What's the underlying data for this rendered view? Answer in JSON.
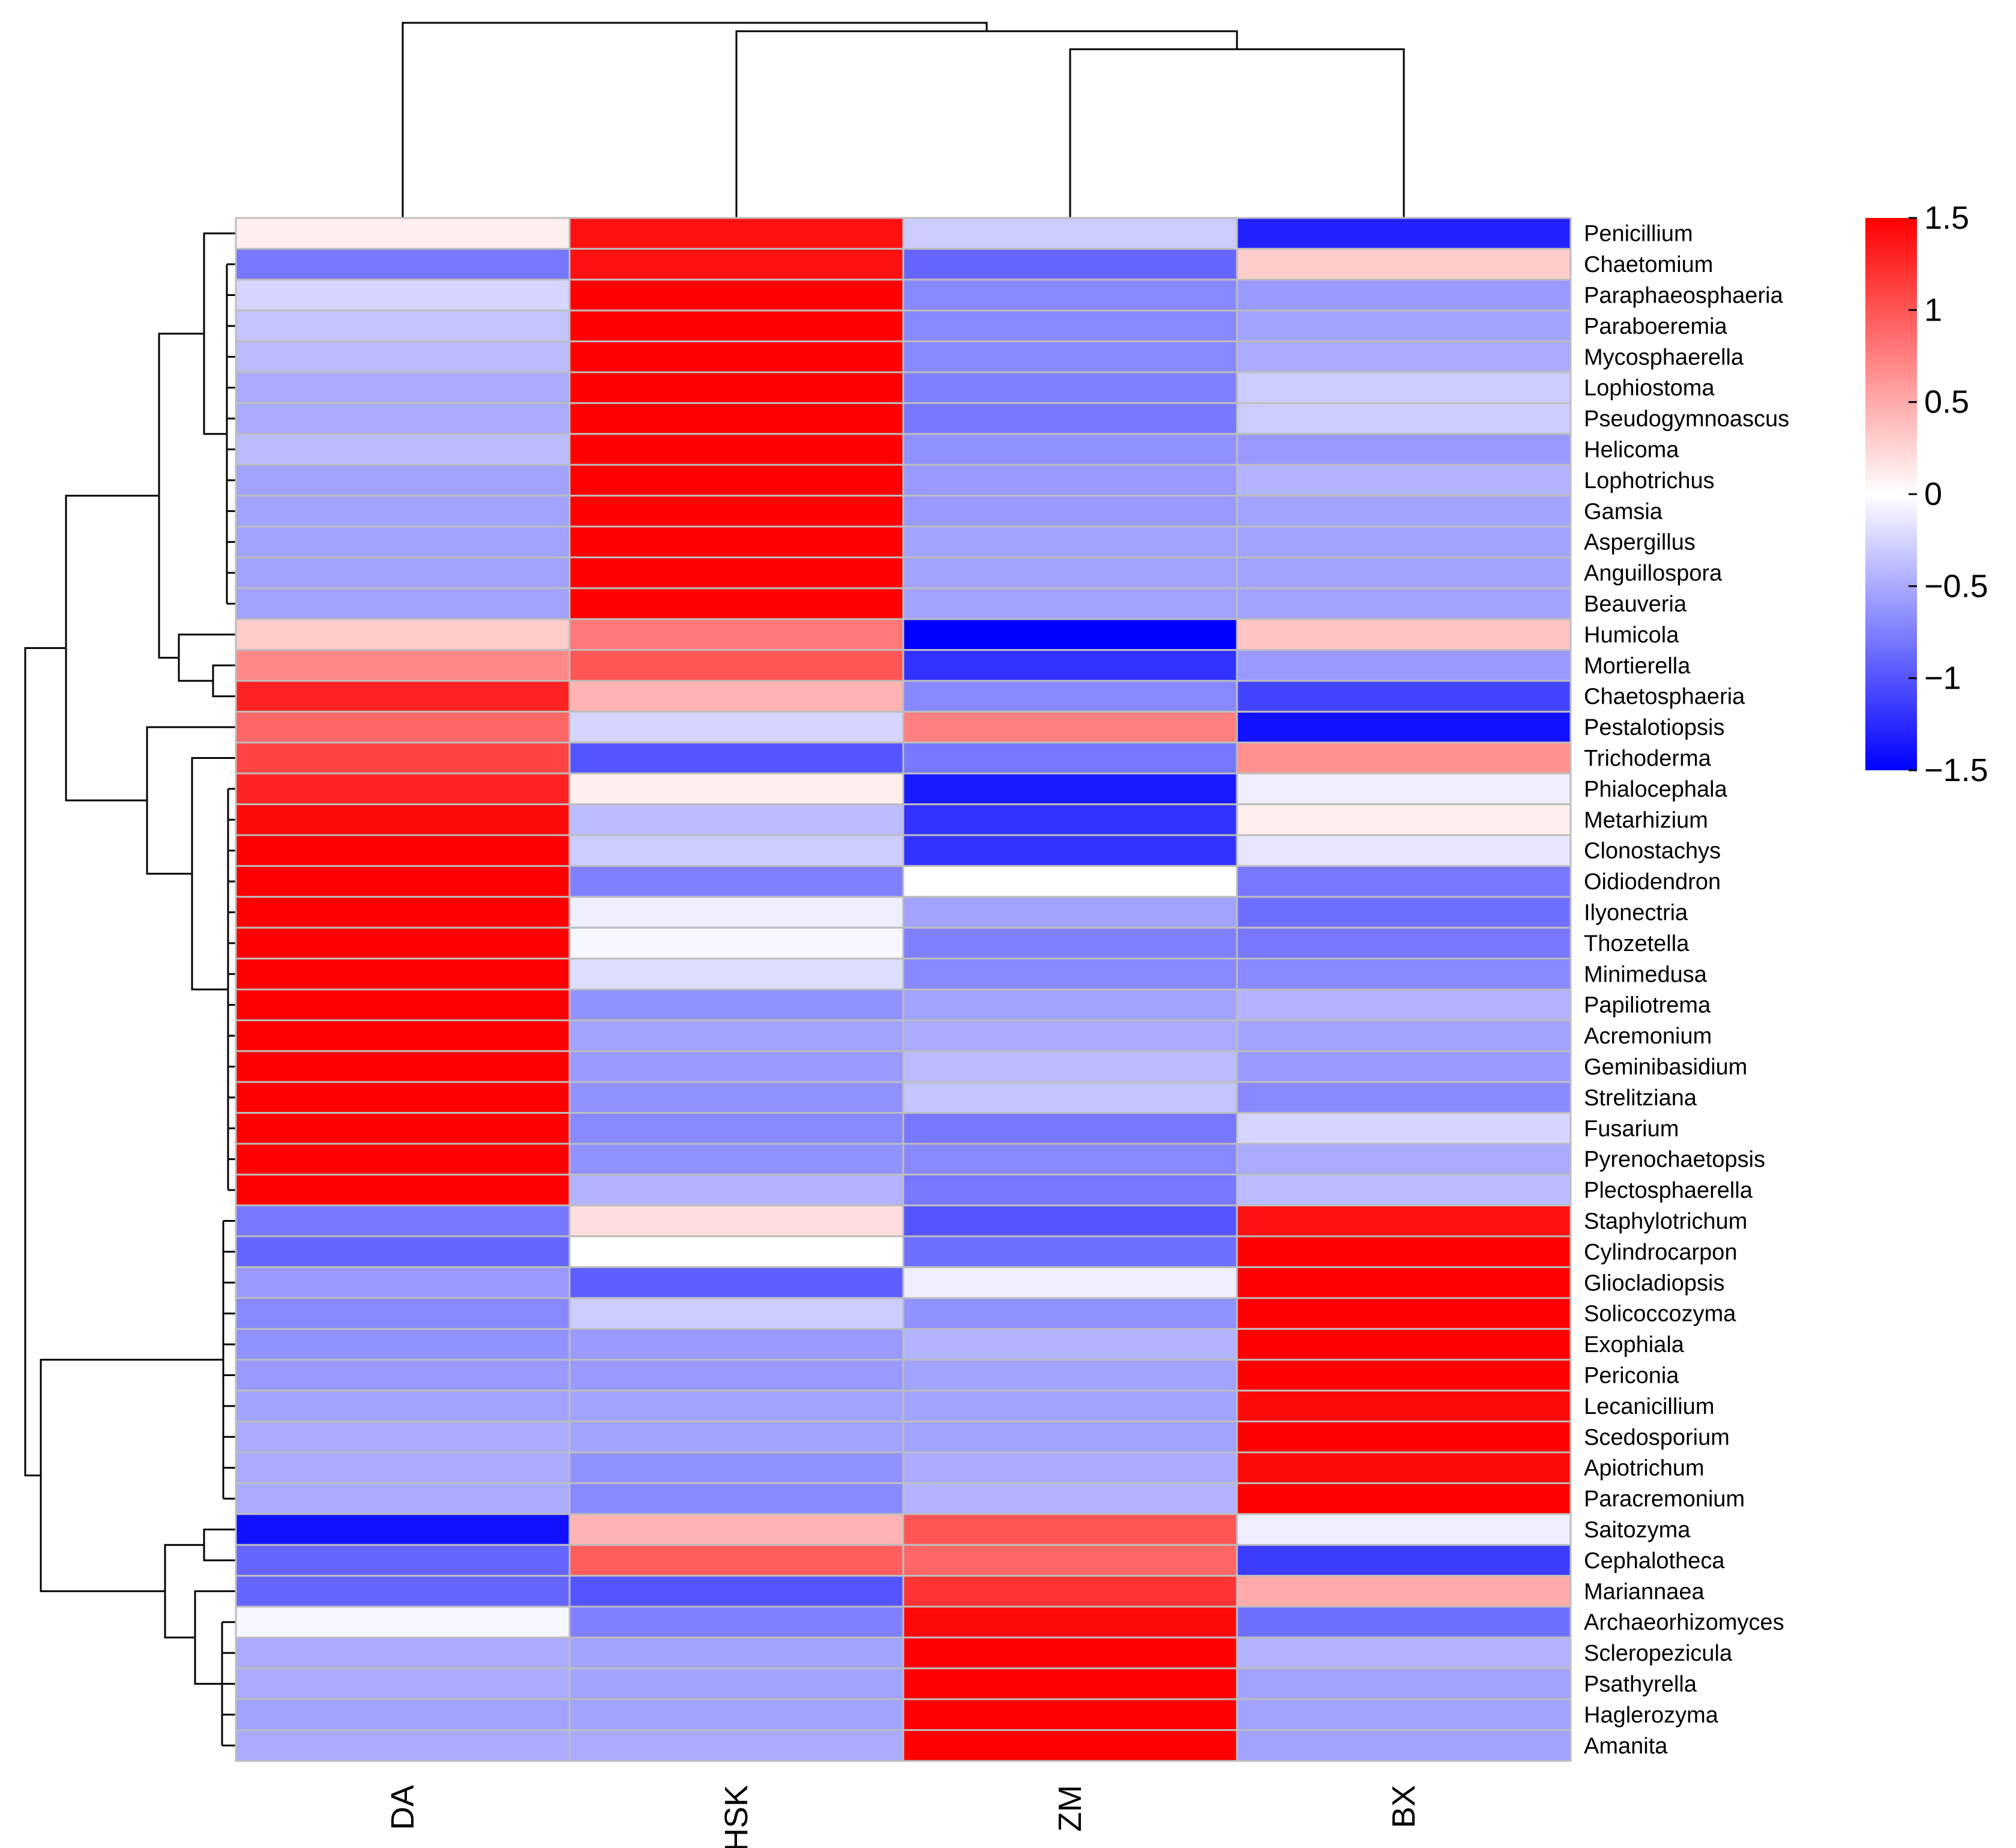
{
  "chart_data": {
    "type": "heatmap",
    "columns": [
      "DA",
      "HSK",
      "ZM",
      "BX"
    ],
    "rows": [
      "Penicillium",
      "Chaetomium",
      "Paraphaeosphaeria",
      "Paraboeremia",
      "Mycosphaerella",
      "Lophiostoma",
      "Pseudogymnoascus",
      "Helicoma",
      "Lophotrichus",
      "Gamsia",
      "Aspergillus",
      "Anguillospora",
      "Beauveria",
      "Humicola",
      "Mortierella",
      "Chaetosphaeria",
      "Pestalotiopsis",
      "Trichoderma",
      "Phialocephala",
      "Metarhizium",
      "Clonostachys",
      "Oidiodendron",
      "Ilyonectria",
      "Thozetella",
      "Minimedusa",
      "Papiliotrema",
      "Acremonium",
      "Geminibasidium",
      "Strelitziana",
      "Fusarium",
      "Pyrenochaetopsis",
      "Plectosphaerella",
      "Staphylotrichum",
      "Cylindrocarpon",
      "Gliocladiopsis",
      "Solicoccozyma",
      "Exophiala",
      "Periconia",
      "Lecanicillium",
      "Scedosporium",
      "Apiotrichum",
      "Paracremonium",
      "Saitozyma",
      "Cephalotheca",
      "Mariannaea",
      "Archaeorhizomyces",
      "Scleropezicula",
      "Psathyrella",
      "Haglerozyma",
      "Amanita"
    ],
    "values": [
      [
        0.1,
        1.4,
        -0.3,
        -1.3
      ],
      [
        -0.8,
        1.4,
        -0.9,
        0.3
      ],
      [
        -0.25,
        1.5,
        -0.7,
        -0.6
      ],
      [
        -0.35,
        1.5,
        -0.7,
        -0.55
      ],
      [
        -0.4,
        1.5,
        -0.7,
        -0.5
      ],
      [
        -0.5,
        1.5,
        -0.75,
        -0.3
      ],
      [
        -0.5,
        1.5,
        -0.8,
        -0.3
      ],
      [
        -0.4,
        1.5,
        -0.65,
        -0.6
      ],
      [
        -0.55,
        1.5,
        -0.6,
        -0.45
      ],
      [
        -0.55,
        1.5,
        -0.6,
        -0.55
      ],
      [
        -0.55,
        1.5,
        -0.55,
        -0.55
      ],
      [
        -0.55,
        1.5,
        -0.55,
        -0.55
      ],
      [
        -0.55,
        1.5,
        -0.55,
        -0.55
      ],
      [
        0.3,
        0.8,
        -1.5,
        0.35
      ],
      [
        0.7,
        1.0,
        -1.2,
        -0.6
      ],
      [
        1.3,
        0.45,
        -0.7,
        -1.1
      ],
      [
        0.9,
        -0.25,
        0.75,
        -1.4
      ],
      [
        1.1,
        -1.0,
        -0.8,
        0.65
      ],
      [
        1.3,
        0.1,
        -1.35,
        -0.1
      ],
      [
        1.45,
        -0.4,
        -1.2,
        0.1
      ],
      [
        1.5,
        -0.3,
        -1.2,
        -0.15
      ],
      [
        1.5,
        -0.75,
        0.0,
        -0.8
      ],
      [
        1.5,
        -0.1,
        -0.55,
        -0.85
      ],
      [
        1.5,
        -0.05,
        -0.75,
        -0.8
      ],
      [
        1.5,
        -0.2,
        -0.7,
        -0.7
      ],
      [
        1.5,
        -0.65,
        -0.55,
        -0.45
      ],
      [
        1.5,
        -0.55,
        -0.5,
        -0.55
      ],
      [
        1.5,
        -0.6,
        -0.4,
        -0.6
      ],
      [
        1.5,
        -0.65,
        -0.35,
        -0.7
      ],
      [
        1.5,
        -0.7,
        -0.8,
        -0.25
      ],
      [
        1.5,
        -0.65,
        -0.7,
        -0.5
      ],
      [
        1.5,
        -0.45,
        -0.8,
        -0.4
      ],
      [
        -0.8,
        0.2,
        -1.0,
        1.4
      ],
      [
        -0.9,
        0.0,
        -0.85,
        1.5
      ],
      [
        -0.6,
        -0.95,
        -0.1,
        1.5
      ],
      [
        -0.7,
        -0.3,
        -0.65,
        1.5
      ],
      [
        -0.65,
        -0.6,
        -0.45,
        1.5
      ],
      [
        -0.6,
        -0.6,
        -0.55,
        1.5
      ],
      [
        -0.55,
        -0.55,
        -0.55,
        1.45
      ],
      [
        -0.5,
        -0.55,
        -0.55,
        1.5
      ],
      [
        -0.5,
        -0.65,
        -0.5,
        1.45
      ],
      [
        -0.5,
        -0.7,
        -0.45,
        1.5
      ],
      [
        -1.4,
        0.45,
        1.0,
        -0.1
      ],
      [
        -0.9,
        0.95,
        0.9,
        -1.15
      ],
      [
        -0.9,
        -1.0,
        1.2,
        0.5
      ],
      [
        -0.05,
        -0.75,
        1.45,
        -0.85
      ],
      [
        -0.5,
        -0.55,
        1.5,
        -0.45
      ],
      [
        -0.5,
        -0.55,
        1.5,
        -0.55
      ],
      [
        -0.55,
        -0.55,
        1.5,
        -0.55
      ],
      [
        -0.5,
        -0.5,
        1.5,
        -0.55
      ]
    ],
    "legend": {
      "ticks": [
        1.5,
        1,
        0.5,
        0,
        -0.5,
        -1,
        -1.5
      ],
      "tick_labels": [
        "1.5",
        "1",
        "0.5",
        "0",
        "−0.5",
        "−1",
        "−1.5"
      ],
      "placement": "right"
    },
    "color_scale": {
      "min": -1.5,
      "mid": 0,
      "max": 1.5
    },
    "row_dendrogram": true,
    "column_dendrogram": true
  },
  "colors": {
    "low": "#0000ff",
    "mid": "#ffffff",
    "high": "#ff0000",
    "cell_border": "#bdbdbd",
    "tree_line": "#000000",
    "background": "#ffffff"
  }
}
